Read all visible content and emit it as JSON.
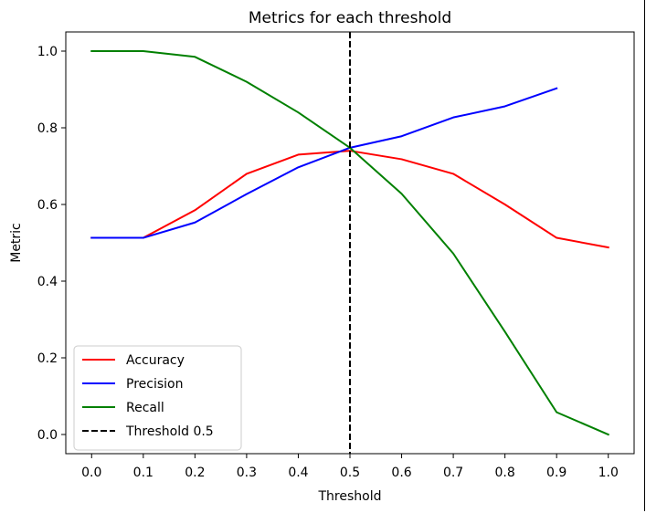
{
  "chart_data": {
    "type": "line",
    "title": "Metrics for each threshold",
    "xlabel": "Threshold",
    "ylabel": "Metric",
    "x": [
      0.0,
      0.1,
      0.2,
      0.3,
      0.4,
      0.5,
      0.6,
      0.7,
      0.8,
      0.9,
      1.0
    ],
    "xticks": [
      "0.0",
      "0.1",
      "0.2",
      "0.3",
      "0.4",
      "0.5",
      "0.6",
      "0.7",
      "0.8",
      "0.9",
      "1.0"
    ],
    "yticks": [
      "0.0",
      "0.2",
      "0.4",
      "0.6",
      "0.8",
      "1.0"
    ],
    "xlim": [
      -0.05,
      1.05
    ],
    "ylim": [
      -0.05,
      1.05
    ],
    "grid": false,
    "legend_position": "lower-left",
    "series": [
      {
        "name": "Accuracy",
        "color": "#ff0000",
        "x": [
          0.0,
          0.1,
          0.2,
          0.3,
          0.4,
          0.5,
          0.6,
          0.7,
          0.8,
          0.9,
          1.0
        ],
        "values": [
          0.513,
          0.513,
          0.585,
          0.68,
          0.73,
          0.74,
          0.718,
          0.68,
          0.6,
          0.513,
          0.488
        ]
      },
      {
        "name": "Precision",
        "color": "#0000ff",
        "x": [
          0.0,
          0.1,
          0.2,
          0.3,
          0.4,
          0.5,
          0.6,
          0.7,
          0.8,
          0.9
        ],
        "values": [
          0.513,
          0.513,
          0.553,
          0.627,
          0.697,
          0.748,
          0.778,
          0.827,
          0.856,
          0.903
        ]
      },
      {
        "name": "Recall",
        "color": "#008000",
        "x": [
          0.0,
          0.1,
          0.2,
          0.3,
          0.4,
          0.5,
          0.6,
          0.7,
          0.8,
          0.9,
          1.0
        ],
        "values": [
          1.0,
          1.0,
          0.985,
          0.92,
          0.84,
          0.748,
          0.628,
          0.472,
          0.268,
          0.058,
          0.0
        ]
      }
    ],
    "reference_line": {
      "name": "Threshold 0.5",
      "x": 0.5,
      "color": "#000000",
      "style": "dashed"
    }
  }
}
